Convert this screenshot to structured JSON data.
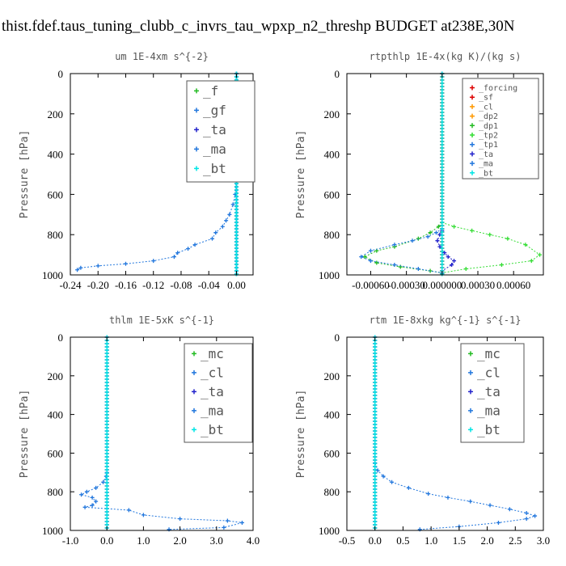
{
  "title": "thist.fdef.taus_tuning_clubb_c_invrs_tau_wpxp_n2_threshp  BUDGET at238E,30N",
  "colors": {
    "green": "#22bb22",
    "blue": "#2277dd",
    "navy": "#2222cc",
    "red": "#dd0000",
    "orange": "#ff9900",
    "cyan": "#00e5e5",
    "lime": "#33dd33",
    "text": "#555555"
  },
  "chart_data": [
    {
      "id": "um",
      "type": "line",
      "title": "um   1E-4xm s^{-2}",
      "ylabel": "Pressure [hPa]",
      "xlim": [
        -0.24,
        0.024
      ],
      "ylim": [
        1000,
        0
      ],
      "xticks": [
        "-0.24",
        "-0.20",
        "-0.16",
        "-0.12",
        "-0.08",
        "-0.04",
        "0.00"
      ],
      "xtick_values": [
        -0.24,
        -0.2,
        -0.16,
        -0.12,
        -0.08,
        -0.04,
        0.0
      ],
      "yticks": [
        "0",
        "200",
        "400",
        "600",
        "800",
        "1000"
      ],
      "ytick_values": [
        0,
        200,
        400,
        600,
        800,
        1000
      ],
      "series": [
        {
          "name": "_f",
          "color": "#22bb22",
          "x": [
            0.0,
            0.0
          ],
          "y": [
            0,
            1000
          ]
        },
        {
          "name": "_gf",
          "color": "#2277dd",
          "x": [
            0.0,
            0.0,
            -0.002,
            0.0,
            0.002,
            0.001,
            0.0,
            0.0,
            -0.002,
            -0.005,
            -0.01,
            -0.015,
            -0.02,
            -0.03,
            -0.035,
            -0.06,
            -0.07,
            -0.085,
            -0.09,
            -0.12,
            -0.16,
            -0.2,
            -0.225,
            -0.23
          ],
          "y": [
            0,
            100,
            200,
            250,
            300,
            350,
            400,
            500,
            600,
            650,
            700,
            730,
            760,
            790,
            820,
            850,
            870,
            890,
            910,
            930,
            945,
            955,
            965,
            975
          ]
        },
        {
          "name": "_ta",
          "color": "#2222cc",
          "x": [
            0.0,
            0.0
          ],
          "y": [
            0,
            1000
          ]
        },
        {
          "name": "_ma",
          "color": "#2277dd",
          "x": [
            0.0,
            0.0
          ],
          "y": [
            0,
            1000
          ]
        },
        {
          "name": "_bt",
          "color": "#00e5e5",
          "x": [
            0.0,
            0.0
          ],
          "y": [
            0,
            1000
          ]
        }
      ]
    },
    {
      "id": "rtpthlp",
      "type": "line",
      "title": "rtpthlp   1E-4x(kg K)/(kg s)",
      "ylabel": "Pressure [hPa]",
      "xlim": [
        -0.0008,
        0.00085
      ],
      "ylim": [
        1000,
        0
      ],
      "xticks": [
        "-0.00060",
        "-0.00030",
        "0.000000",
        "0.00030",
        "0.00060"
      ],
      "xtick_values": [
        -0.0006,
        -0.0003,
        0.0,
        0.0003,
        0.0006
      ],
      "yticks": [
        "0",
        "200",
        "400",
        "600",
        "800",
        "1000"
      ],
      "ytick_values": [
        0,
        200,
        400,
        600,
        800,
        1000
      ],
      "series": [
        {
          "name": "_forcing",
          "color": "#dd0000",
          "x": [
            0.0,
            0.0
          ],
          "y": [
            0,
            1000
          ]
        },
        {
          "name": "_sf",
          "color": "#dd0000",
          "x": [
            0.0,
            0.0
          ],
          "y": [
            0,
            1000
          ]
        },
        {
          "name": "_cl",
          "color": "#ff9900",
          "x": [
            0.0,
            0.0
          ],
          "y": [
            0,
            1000
          ]
        },
        {
          "name": "_dp2",
          "color": "#ff9900",
          "x": [
            0.0,
            0.0
          ],
          "y": [
            0,
            1000
          ]
        },
        {
          "name": "_dp1",
          "color": "#22bb22",
          "x": [
            0.0,
            0.0,
            -3e-05,
            -0.0001,
            -0.0002,
            -0.0004,
            -0.00055,
            -0.00065,
            -0.00055,
            -0.00035,
            -0.0001,
            0.0
          ],
          "y": [
            0,
            740,
            760,
            790,
            820,
            860,
            880,
            910,
            940,
            960,
            980,
            990
          ]
        },
        {
          "name": "_tp2",
          "color": "#33dd33",
          "x": [
            0.0,
            0.0,
            0.0001,
            0.00025,
            0.0004,
            0.00055,
            0.0007,
            0.00082,
            0.00075,
            0.0005,
            0.0002,
            0.0
          ],
          "y": [
            0,
            740,
            760,
            780,
            800,
            820,
            850,
            900,
            930,
            950,
            970,
            990
          ]
        },
        {
          "name": "_tp1",
          "color": "#2277dd",
          "x": [
            0.0,
            0.0,
            -5e-05,
            -0.00012,
            -0.00025,
            -0.0004,
            -0.0006,
            -0.00068,
            -0.0006,
            -0.0004,
            -0.0002,
            0.0
          ],
          "y": [
            0,
            770,
            790,
            810,
            830,
            850,
            880,
            910,
            930,
            950,
            970,
            990
          ]
        },
        {
          "name": "_ta",
          "color": "#2222cc",
          "x": [
            0.0,
            0.0,
            -2e-05,
            -4e-05,
            -2e-05,
            2e-05,
            5e-05,
            0.0001,
            8e-05,
            0.0
          ],
          "y": [
            0,
            780,
            800,
            830,
            860,
            890,
            910,
            930,
            950,
            980
          ]
        },
        {
          "name": "_ma",
          "color": "#2277dd",
          "x": [
            0.0,
            0.0
          ],
          "y": [
            0,
            1000
          ]
        },
        {
          "name": "_bt",
          "color": "#00e5e5",
          "x": [
            0.0,
            0.0
          ],
          "y": [
            0,
            1000
          ]
        }
      ]
    },
    {
      "id": "thlm",
      "type": "line",
      "title": "thlm   1E-5xK s^{-1}",
      "ylabel": "Pressure [hPa]",
      "xlim": [
        -1.0,
        4.0
      ],
      "ylim": [
        1000,
        0
      ],
      "xticks": [
        "-1.0",
        "0.0",
        "1.0",
        "2.0",
        "3.0",
        "4.0"
      ],
      "xtick_values": [
        -1.0,
        0.0,
        1.0,
        2.0,
        3.0,
        4.0
      ],
      "yticks": [
        "0",
        "200",
        "400",
        "600",
        "800",
        "1000"
      ],
      "ytick_values": [
        0,
        200,
        400,
        600,
        800,
        1000
      ],
      "series": [
        {
          "name": "_mc",
          "color": "#22bb22",
          "x": [
            0.0,
            0.0
          ],
          "y": [
            0,
            1000
          ]
        },
        {
          "name": "_cl",
          "color": "#2277dd",
          "x": [
            0.0,
            0.0,
            -0.02,
            -0.1,
            -0.3,
            -0.55,
            -0.7,
            -0.4,
            -0.3,
            -0.4,
            -0.6,
            0.6,
            1.0,
            2.0,
            3.3,
            3.7,
            3.2,
            1.7
          ],
          "y": [
            0,
            700,
            720,
            750,
            780,
            800,
            815,
            830,
            850,
            870,
            880,
            895,
            920,
            940,
            950,
            960,
            985,
            995
          ]
        },
        {
          "name": "_ta",
          "color": "#2222cc",
          "x": [
            0.0,
            0.0
          ],
          "y": [
            0,
            1000
          ]
        },
        {
          "name": "_ma",
          "color": "#2277dd",
          "x": [
            0.0,
            0.0
          ],
          "y": [
            0,
            1000
          ]
        },
        {
          "name": "_bt",
          "color": "#00e5e5",
          "x": [
            0.0,
            0.0
          ],
          "y": [
            0,
            1000
          ]
        }
      ]
    },
    {
      "id": "rtm",
      "type": "line",
      "title": "rtm   1E-8xkg kg^{-1} s^{-1}",
      "ylabel": "Pressure [hPa]",
      "xlim": [
        -0.5,
        3.0
      ],
      "ylim": [
        1000,
        0
      ],
      "xticks": [
        "-0.5",
        "0.0",
        "0.5",
        "1.0",
        "1.5",
        "2.0",
        "2.5",
        "3.0"
      ],
      "xtick_values": [
        -0.5,
        0.0,
        0.5,
        1.0,
        1.5,
        2.0,
        2.5,
        3.0
      ],
      "yticks": [
        "0",
        "200",
        "400",
        "600",
        "800",
        "1000"
      ],
      "ytick_values": [
        0,
        200,
        400,
        600,
        800,
        1000
      ],
      "series": [
        {
          "name": "_mc",
          "color": "#22bb22",
          "x": [
            0.0,
            0.0
          ],
          "y": [
            0,
            1000
          ]
        },
        {
          "name": "_cl",
          "color": "#2277dd",
          "x": [
            0.0,
            0.0,
            0.05,
            0.15,
            0.3,
            0.6,
            0.95,
            1.3,
            1.7,
            2.05,
            2.4,
            2.7,
            2.85,
            2.7,
            2.2,
            1.5,
            0.8
          ],
          "y": [
            0,
            650,
            690,
            720,
            750,
            780,
            810,
            830,
            850,
            870,
            890,
            910,
            925,
            940,
            960,
            980,
            995
          ]
        },
        {
          "name": "_ta",
          "color": "#2222cc",
          "x": [
            0.0,
            0.0
          ],
          "y": [
            0,
            1000
          ]
        },
        {
          "name": "_ma",
          "color": "#2277dd",
          "x": [
            0.0,
            0.0
          ],
          "y": [
            0,
            1000
          ]
        },
        {
          "name": "_bt",
          "color": "#00e5e5",
          "x": [
            0.0,
            0.0
          ],
          "y": [
            0,
            1000
          ]
        }
      ]
    }
  ]
}
